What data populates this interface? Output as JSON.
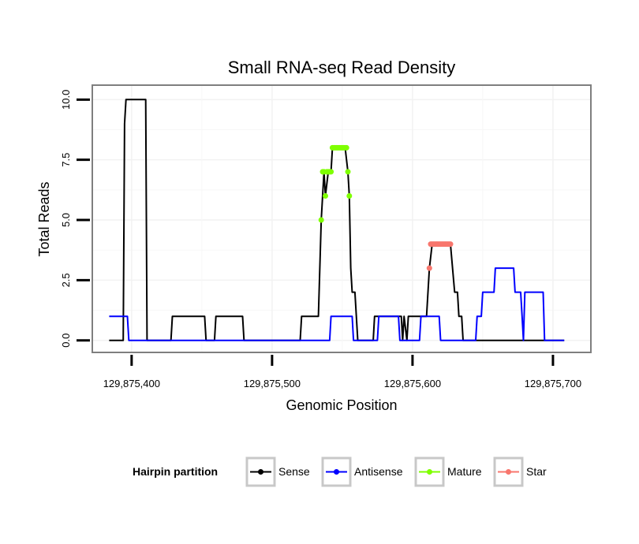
{
  "chart_data": {
    "type": "line",
    "title": "Small RNA-seq Read Density",
    "xlabel": "Genomic Position",
    "ylabel": "Total Reads",
    "xlim": [
      129875372,
      129875727
    ],
    "ylim": [
      -0.5,
      10.6
    ],
    "x_ticks": [
      129875400,
      129875500,
      129875600,
      129875700
    ],
    "x_tick_labels": [
      "129,875,400",
      "129,875,500",
      "129,875,600",
      "129,875,700"
    ],
    "y_ticks": [
      0,
      2.5,
      5,
      7.5,
      10
    ],
    "y_tick_labels": [
      "0.0",
      "2.5",
      "5.0",
      "7.5",
      "10.0"
    ],
    "grid": true,
    "legend": {
      "title": "Hairpin partition",
      "position": "bottom",
      "entries": [
        "Sense",
        "Antisense",
        "Mature",
        "Star"
      ]
    },
    "series": [
      {
        "name": "Sense",
        "color": "#000000",
        "kind": "line",
        "x": [
          129875384,
          129875394,
          129875395,
          129875396,
          129875410,
          129875411,
          129875428,
          129875429,
          129875452,
          129875453,
          129875459,
          129875460,
          129875479,
          129875480,
          129875520,
          129875521,
          129875533,
          129875535,
          129875537,
          129875538,
          129875540,
          129875541,
          129875542,
          129875543,
          129875552,
          129875554,
          129875555,
          129875556,
          129875557,
          129875559,
          129875561,
          129875572,
          129875573,
          129875592,
          129875593,
          129875594,
          129875596,
          129875597,
          129875610,
          129875612,
          129875614,
          129875616,
          129875627,
          129875630,
          129875632,
          129875633,
          129875634,
          129875635,
          129875636,
          129875638,
          129875639,
          129875708
        ],
        "y": [
          0,
          0,
          9,
          10,
          10,
          0,
          0,
          1,
          1,
          0,
          0,
          1,
          1,
          0,
          0,
          1,
          1,
          5,
          7,
          6,
          7,
          7,
          7,
          8,
          8,
          7,
          6,
          3,
          2,
          2,
          0,
          0,
          1,
          1,
          0,
          1,
          0,
          1,
          1,
          3,
          4,
          4,
          4,
          2,
          2,
          1,
          1,
          1,
          0,
          0,
          0,
          0
        ]
      },
      {
        "name": "Antisense",
        "color": "#0000ff",
        "kind": "line",
        "x": [
          129875384,
          129875397,
          129875398,
          129875541,
          129875542,
          129875557,
          129875558,
          129875575,
          129875576,
          129875590,
          129875591,
          129875605,
          129875606,
          129875619,
          129875620,
          129875645,
          129875646,
          129875649,
          129875650,
          129875658,
          129875659,
          129875672,
          129875673,
          129875677,
          129875678,
          129875679,
          129875680,
          129875693,
          129875694,
          129875708
        ],
        "y": [
          1,
          1,
          0,
          0,
          1,
          1,
          0,
          0,
          1,
          1,
          0,
          0,
          1,
          1,
          0,
          0,
          1,
          1,
          2,
          2,
          3,
          3,
          2,
          2,
          1,
          0,
          2,
          2,
          0,
          0
        ]
      },
      {
        "name": "Mature",
        "color": "#7fff00",
        "kind": "points",
        "x": [
          129875535,
          129875536,
          129875537,
          129875538,
          129875539,
          129875540,
          129875541,
          129875542,
          129875543,
          129875544,
          129875545,
          129875546,
          129875547,
          129875548,
          129875549,
          129875550,
          129875551,
          129875552,
          129875553,
          129875554,
          129875555
        ],
        "y": [
          5,
          7,
          7,
          6,
          7,
          7,
          7,
          7,
          8,
          8,
          8,
          8,
          8,
          8,
          8,
          8,
          8,
          8,
          8,
          7,
          6
        ]
      },
      {
        "name": "Star",
        "color": "#f8766d",
        "kind": "points",
        "x": [
          129875612,
          129875613,
          129875614,
          129875615,
          129875616,
          129875617,
          129875618,
          129875619,
          129875620,
          129875621,
          129875622,
          129875623,
          129875624,
          129875625,
          129875626,
          129875627
        ],
        "y": [
          3,
          4,
          4,
          4,
          4,
          4,
          4,
          4,
          4,
          4,
          4,
          4,
          4,
          4,
          4,
          4
        ]
      }
    ]
  }
}
